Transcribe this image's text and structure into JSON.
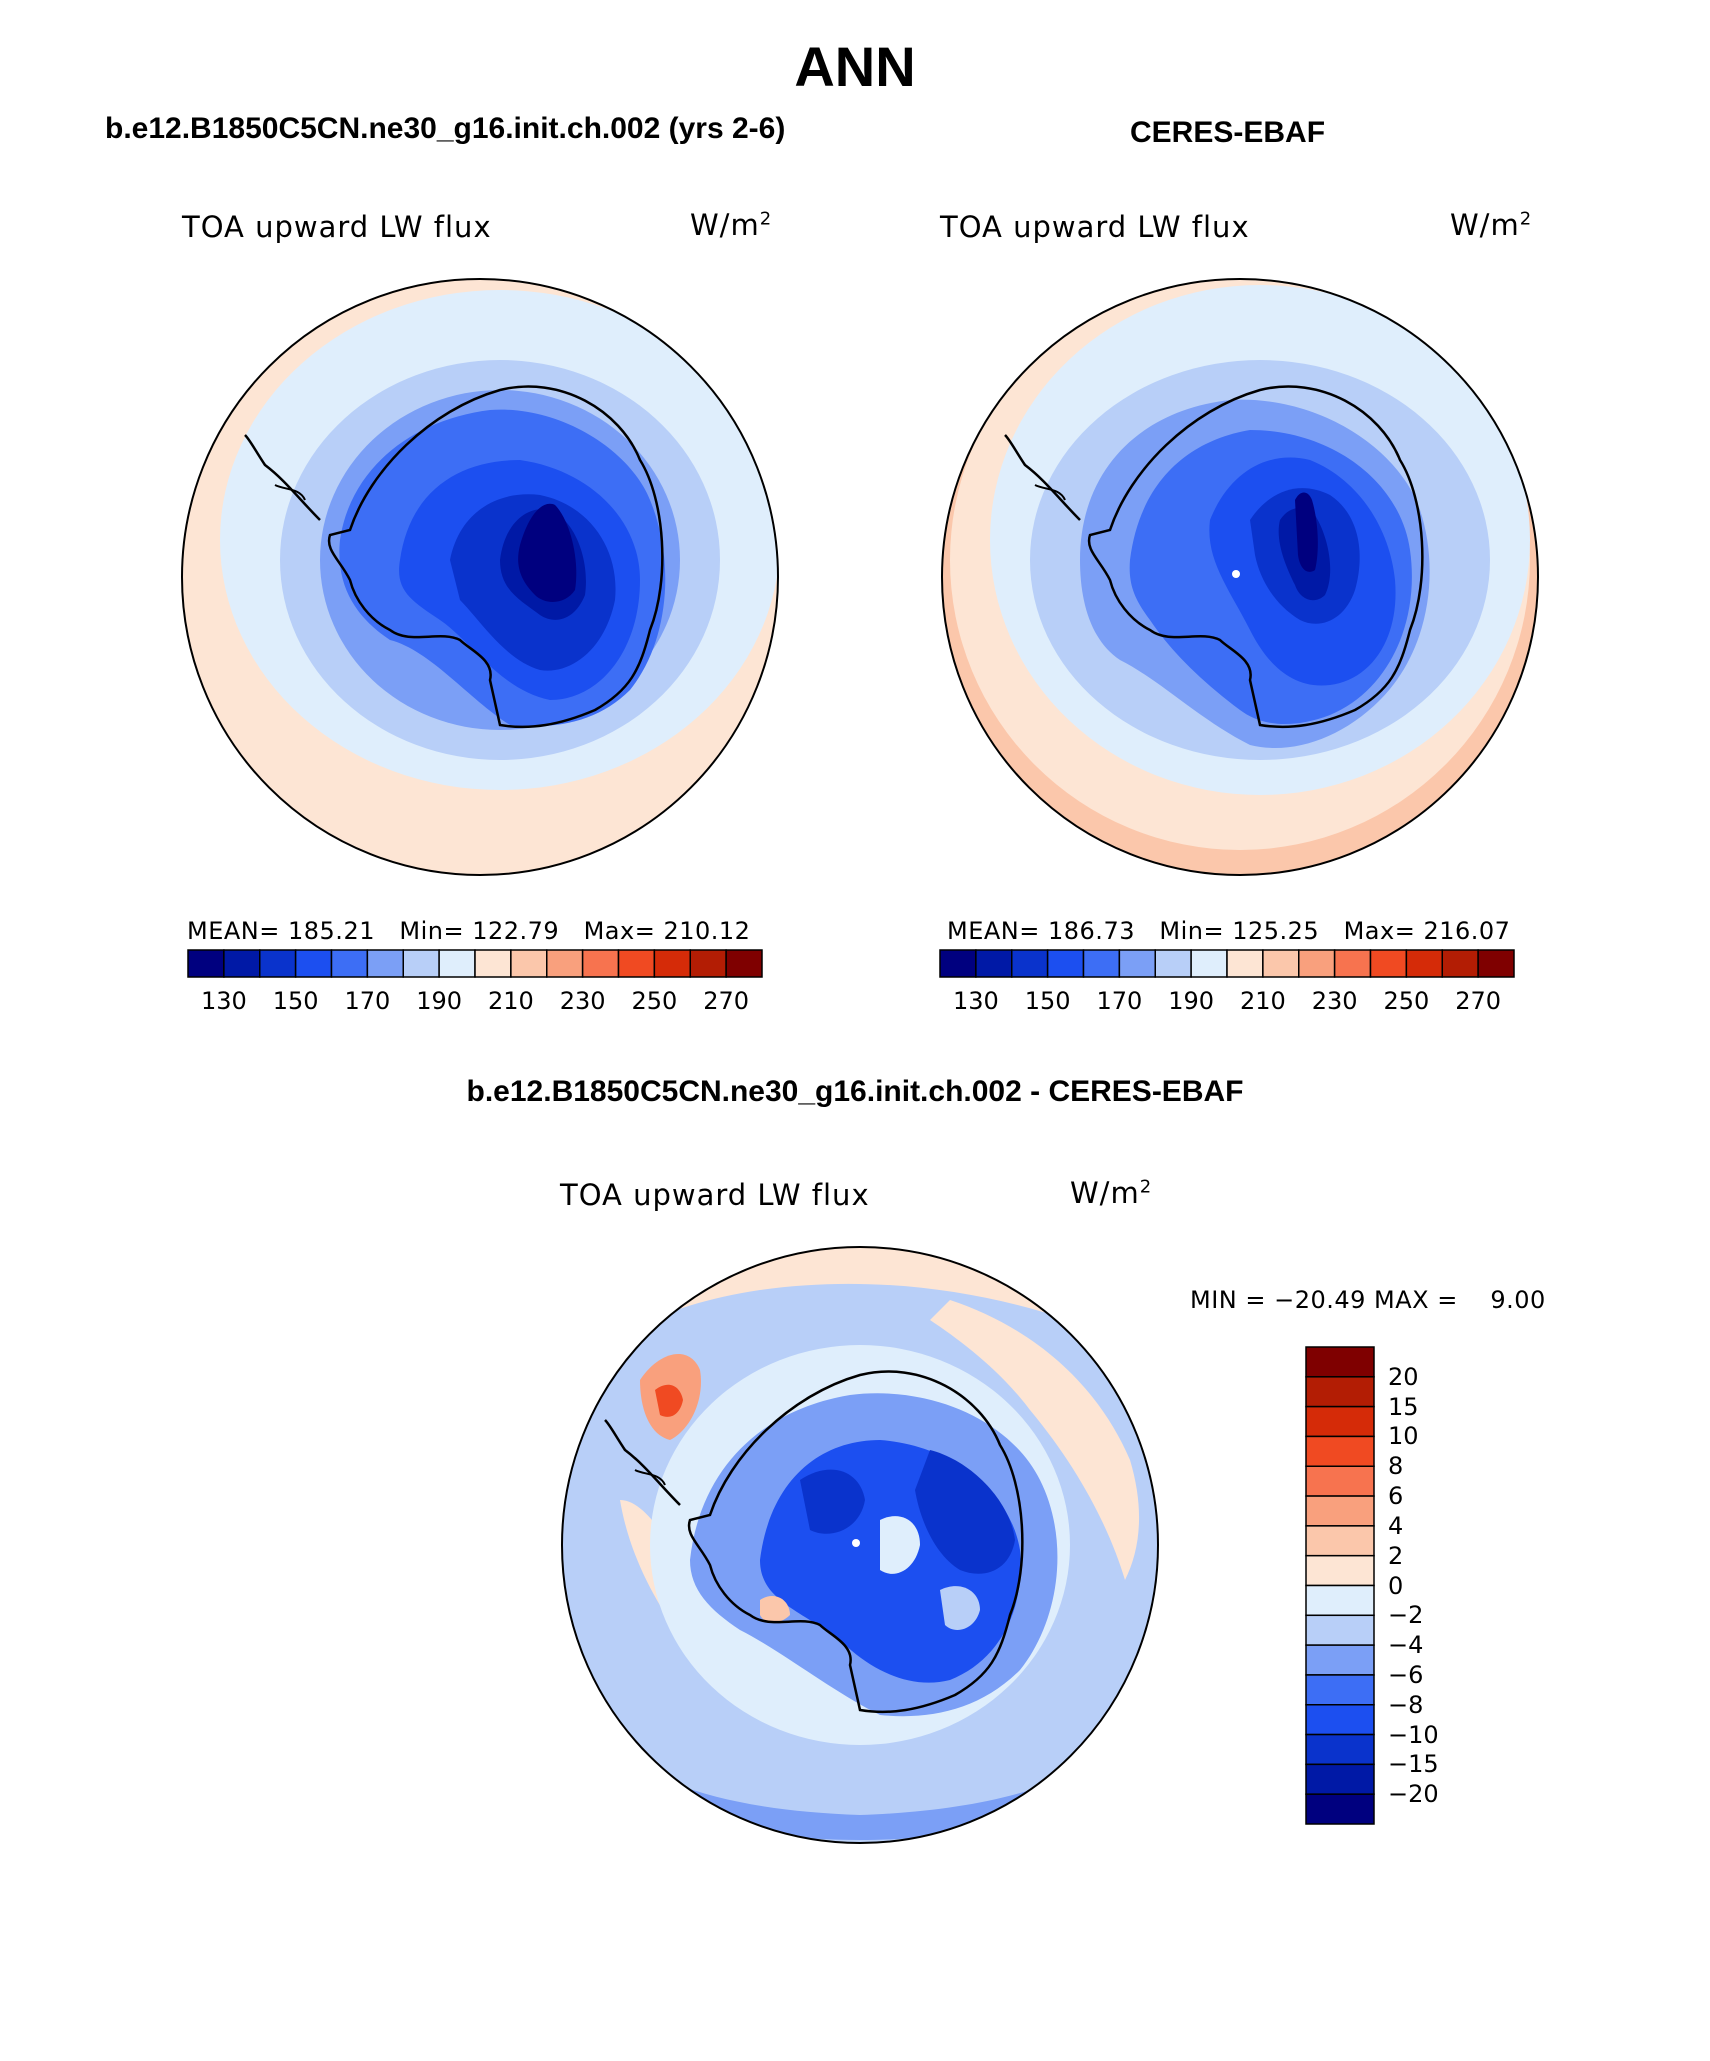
{
  "title": "ANN",
  "panels": [
    {
      "case_title": "b.e12.B1850C5CN.ne30_g16.init.ch.002 (yrs 2-6)",
      "variable": "TOA upward LW flux",
      "unit": "W/m",
      "unit_exp": "2",
      "stats": {
        "mean_label": "MEAN=",
        "mean": "185.21",
        "min_label": "Min=",
        "min": "122.79",
        "max_label": "Max=",
        "max": "210.12"
      }
    },
    {
      "case_title": "CERES-EBAF",
      "variable": "TOA upward LW flux",
      "unit": "W/m",
      "unit_exp": "2",
      "stats": {
        "mean_label": "MEAN=",
        "mean": "186.73",
        "min_label": "Min=",
        "min": "125.25",
        "max_label": "Max=",
        "max": "216.07"
      }
    }
  ],
  "difference": {
    "title": "b.e12.B1850C5CN.ne30_g16.init.ch.002 - CERES-EBAF",
    "variable": "TOA upward LW flux",
    "unit": "W/m",
    "unit_exp": "2",
    "min_max": "MIN = −20.49 MAX =    9.00"
  },
  "colorbar": {
    "colors": [
      "#00007f",
      "#0019a6",
      "#0a33cc",
      "#1c4ff0",
      "#3d6ef5",
      "#7b9ff6",
      "#b8cff8",
      "#dfeefc",
      "#fde5d4",
      "#fbc7ab",
      "#f9a07d",
      "#f7734f",
      "#f04a22",
      "#d52b08",
      "#b31d04",
      "#7f0000"
    ],
    "tick_labels": [
      "130",
      "150",
      "170",
      "190",
      "210",
      "230",
      "250",
      "270"
    ]
  },
  "diff_colorbar": {
    "colors": [
      "#00007f",
      "#0019a6",
      "#0a33cc",
      "#1c4ff0",
      "#3d6ef5",
      "#7b9ff6",
      "#b8cff8",
      "#dfeefc",
      "#fde5d4",
      "#fbc7ab",
      "#f9a07d",
      "#f7734f",
      "#f04a22",
      "#d52b08",
      "#b31d04",
      "#7f0000"
    ],
    "tick_labels": [
      "20",
      "15",
      "10",
      "8",
      "6",
      "4",
      "2",
      "0",
      "−2",
      "−4",
      "−6",
      "−8",
      "−10",
      "−15",
      "−20"
    ]
  }
}
